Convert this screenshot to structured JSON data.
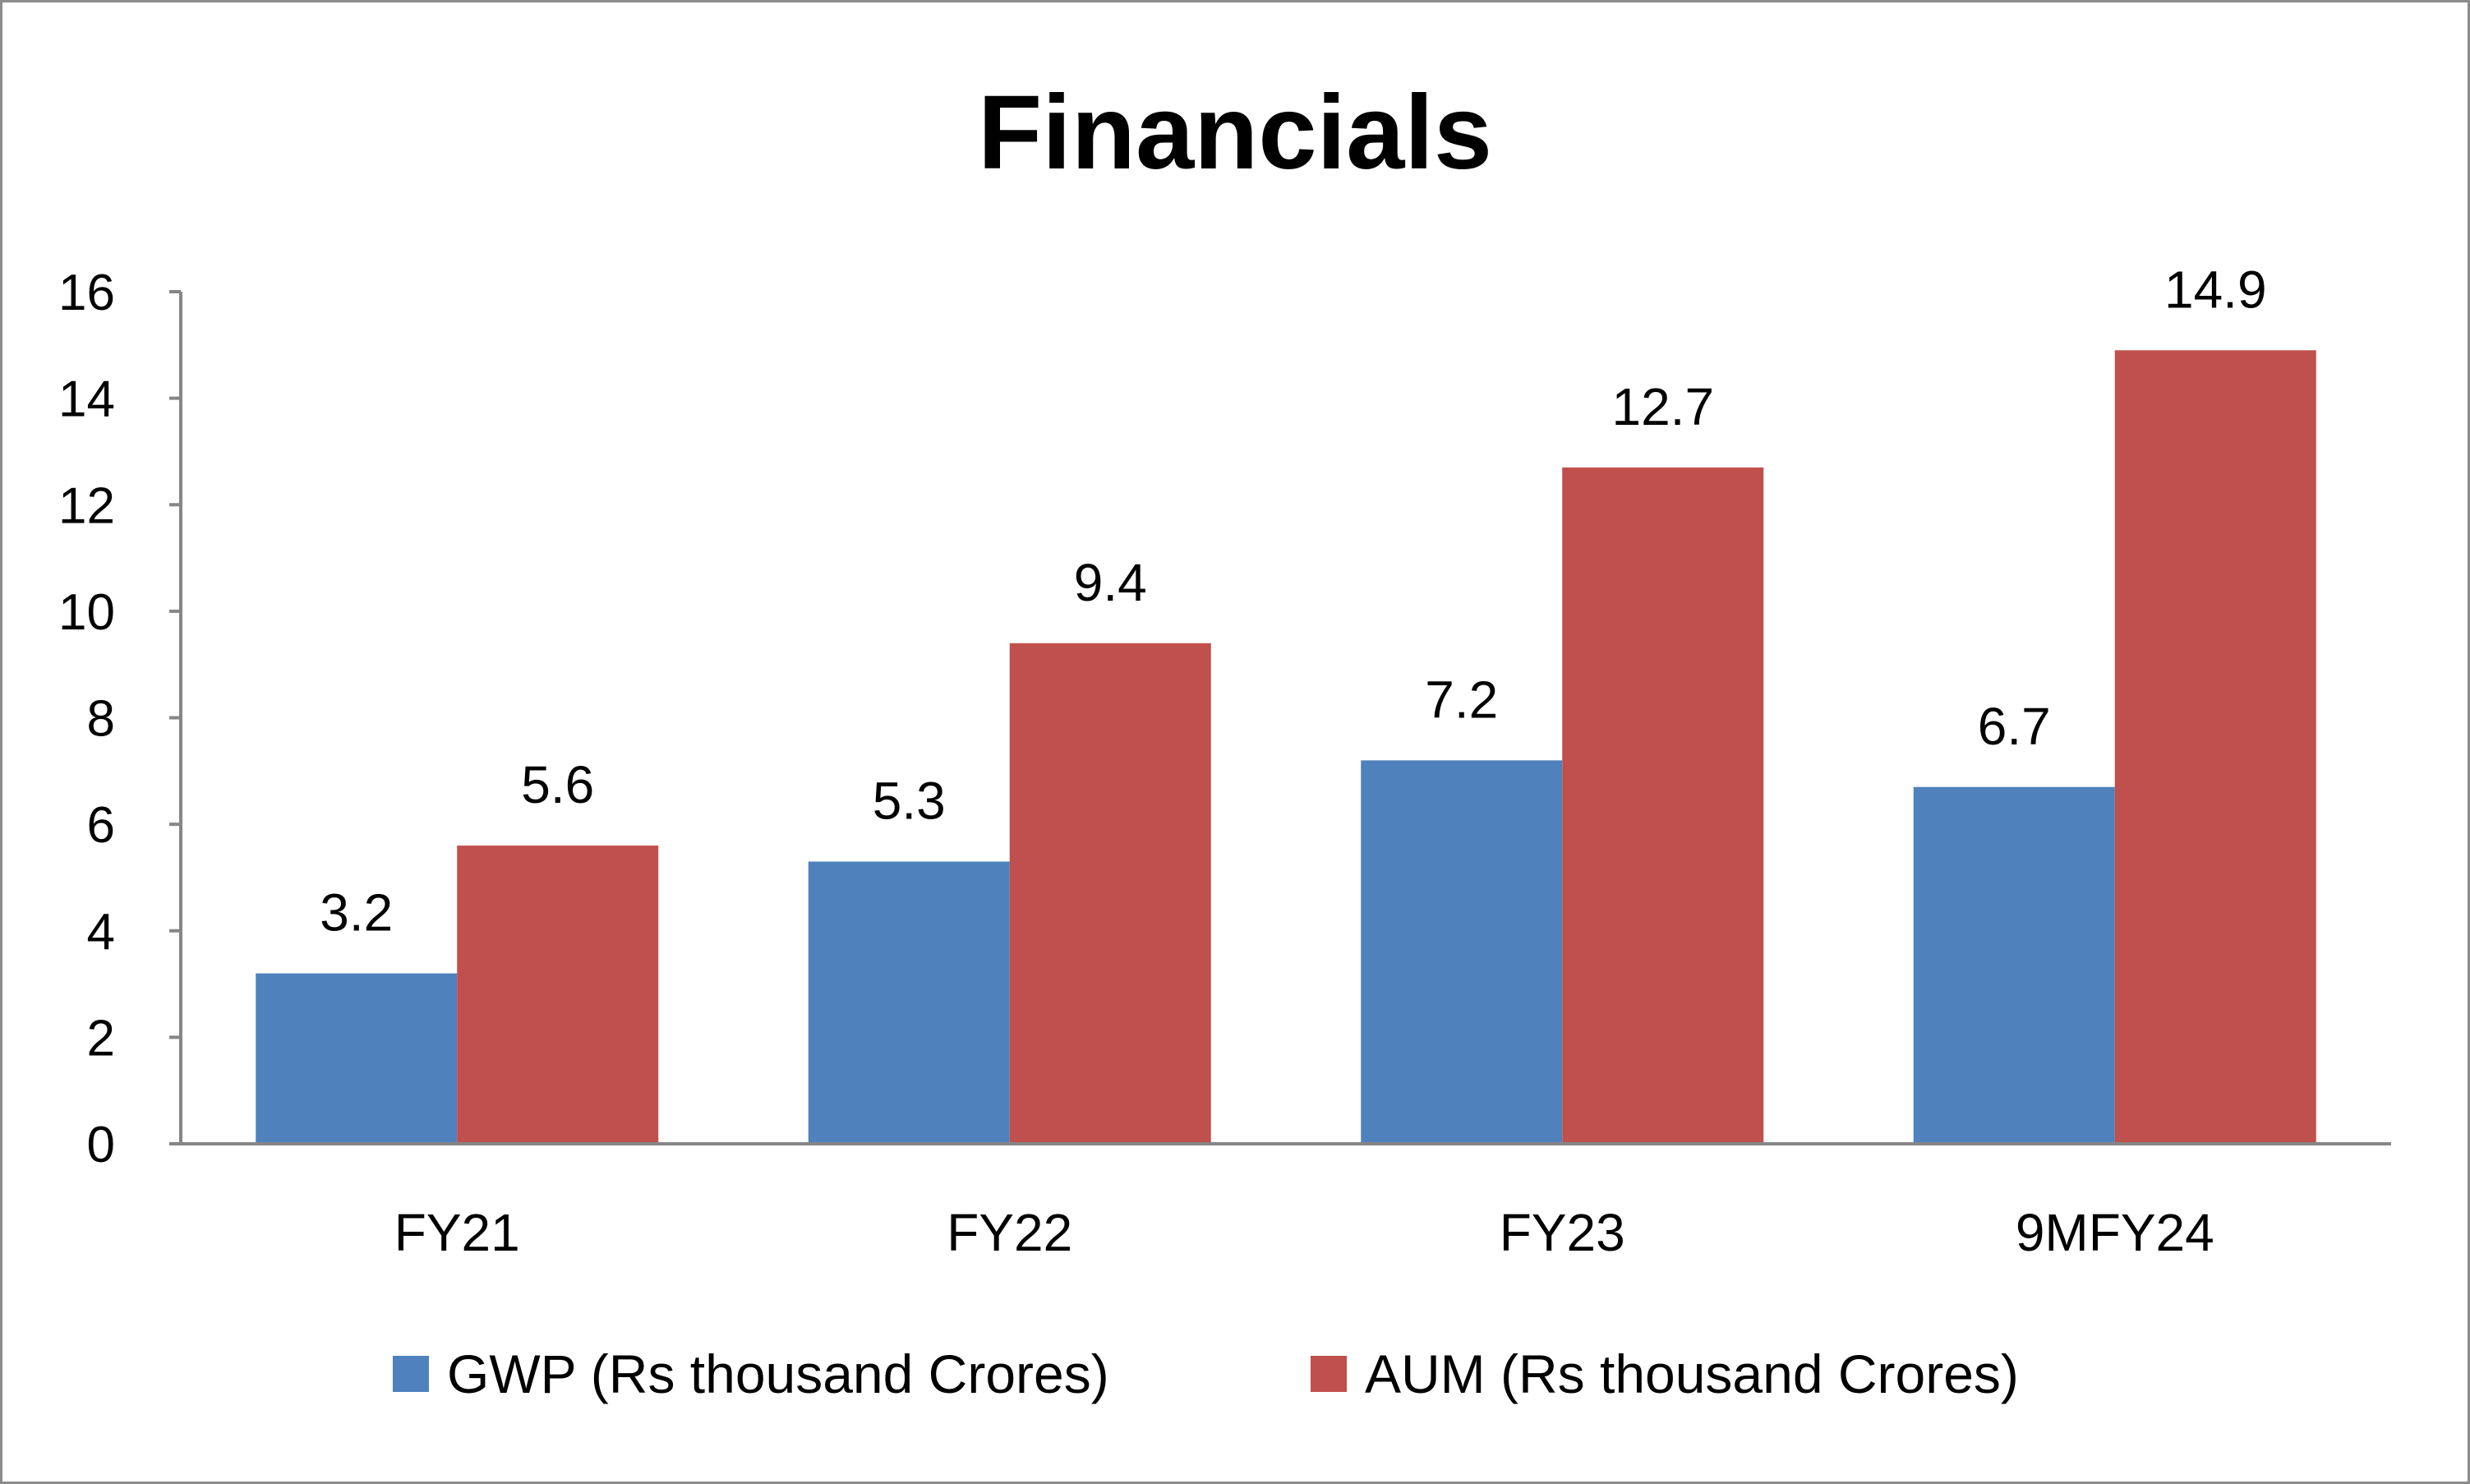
{
  "chart_data": {
    "type": "bar",
    "title": "Financials",
    "xlabel": "",
    "ylabel": "",
    "ylim": [
      0,
      16
    ],
    "yticks": [
      0,
      2,
      4,
      6,
      8,
      10,
      12,
      14,
      16
    ],
    "grid": false,
    "legend_position": "bottom",
    "categories": [
      "FY21",
      "FY22",
      "FY23",
      "9MFY24"
    ],
    "series": [
      {
        "name": "GWP (Rs thousand Crores)",
        "color": "#4F81BD",
        "values": [
          3.2,
          5.3,
          7.2,
          6.7
        ]
      },
      {
        "name": "AUM (Rs thousand Crores)",
        "color": "#C0504D",
        "values": [
          5.6,
          9.4,
          12.7,
          14.9
        ]
      }
    ]
  }
}
